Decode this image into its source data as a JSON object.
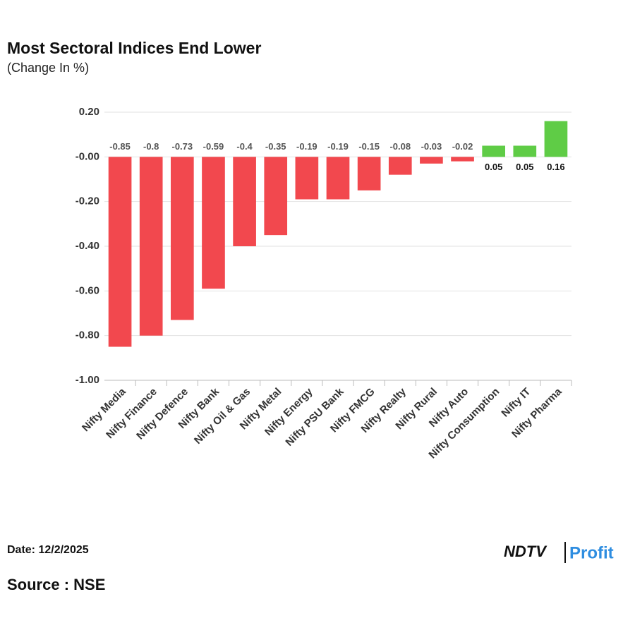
{
  "chart_data": {
    "type": "bar",
    "title": "Most Sectoral Indices End Lower",
    "subtitle": "(Change In %)",
    "categories": [
      "Nifty Media",
      "Nifty Finance",
      "Nifty Defence",
      "Nifty Bank",
      "Nifty Oil & Gas",
      "Nifty Metal",
      "Nifty Energy",
      "Nifty PSU Bank",
      "Nifty FMCG",
      "Nifty Realty",
      "Nifty Rural",
      "Nifty Auto",
      "Nifty Consumption",
      "Nifty IT",
      "Nifty Pharma"
    ],
    "values": [
      -0.85,
      -0.8,
      -0.73,
      -0.59,
      -0.4,
      -0.35,
      -0.19,
      -0.19,
      -0.15,
      -0.08,
      -0.03,
      -0.02,
      0.05,
      0.05,
      0.16
    ],
    "negative_color": "#f2484e",
    "positive_color": "#5fcc46",
    "ylim": [
      -1,
      0.2
    ],
    "yticks": [
      {
        "value": 0.2,
        "label": "0.20"
      },
      {
        "value": 0,
        "label": "-0.00"
      },
      {
        "value": -0.2,
        "label": "-0.20"
      },
      {
        "value": -0.4,
        "label": "-0.40"
      },
      {
        "value": -0.6,
        "label": "-0.60"
      },
      {
        "value": -0.8,
        "label": "-0.80"
      },
      {
        "value": -1,
        "label": "-1.00"
      }
    ],
    "grid": true,
    "date": "Date: 12/2/2025",
    "source": "Source : NSE",
    "brand": "NDTV",
    "brand_sub": "Profit"
  }
}
